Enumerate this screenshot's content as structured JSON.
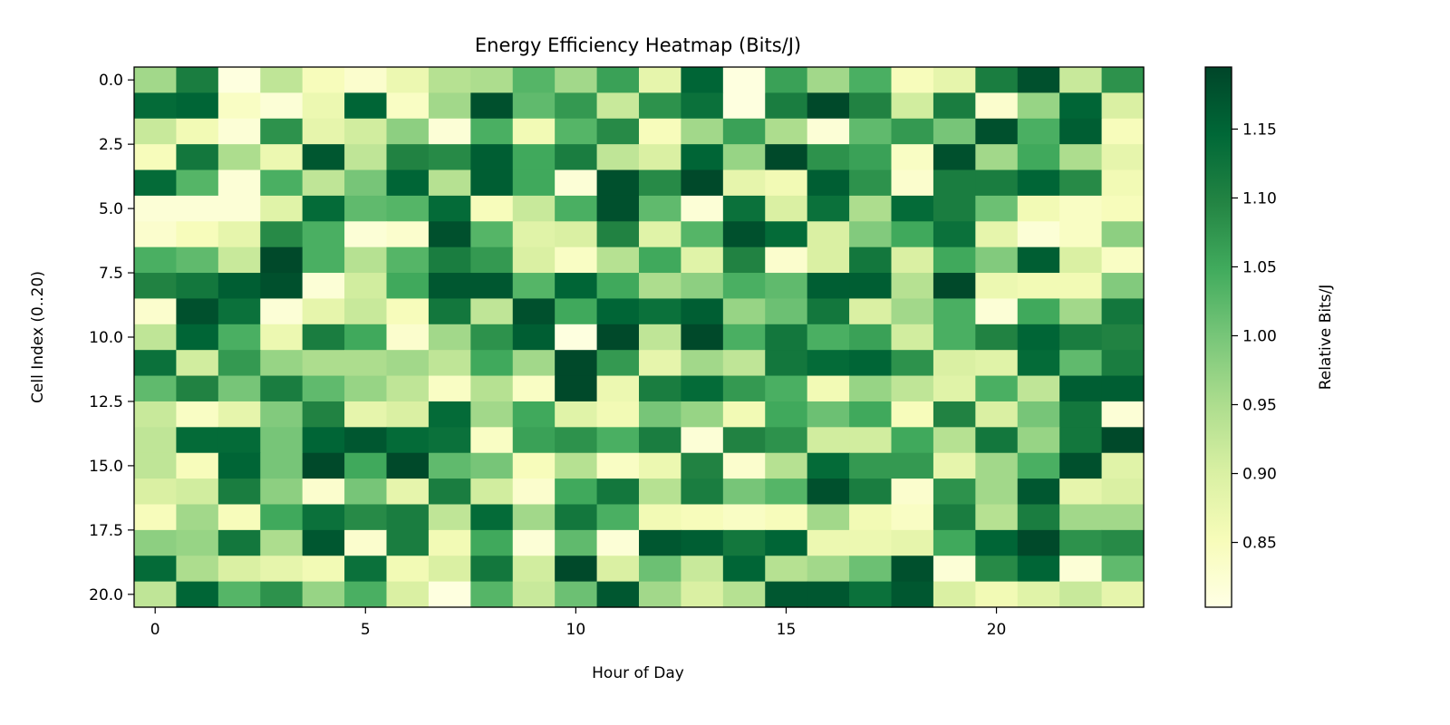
{
  "chart_data": {
    "type": "heatmap",
    "title": "Energy Efficiency Heatmap (Bits/J)",
    "xlabel": "Hour of Day",
    "ylabel": "Cell Index (0..20)",
    "colorbar_label": "Relative Bits/J",
    "colormap": "YlGn",
    "colormap_stops": [
      "#ffffe5",
      "#f7fcb9",
      "#d9f0a3",
      "#addd8e",
      "#78c679",
      "#41ab5d",
      "#238443",
      "#006837",
      "#004529"
    ],
    "x_ticks": [
      "0",
      "5",
      "10",
      "15",
      "20"
    ],
    "x_tick_values": [
      0,
      5,
      10,
      15,
      20
    ],
    "y_ticks": [
      "0.0",
      "2.5",
      "5.0",
      "7.5",
      "10.0",
      "12.5",
      "15.0",
      "17.5",
      "20.0"
    ],
    "y_tick_values": [
      0,
      2.5,
      5,
      7.5,
      10,
      12.5,
      15,
      17.5,
      20
    ],
    "colorbar_ticks": [
      "0.85",
      "0.90",
      "0.95",
      "1.00",
      "1.05",
      "1.10",
      "1.15"
    ],
    "colorbar_tick_values": [
      0.85,
      0.9,
      0.95,
      1.0,
      1.05,
      1.1,
      1.15
    ],
    "vmin": 0.803,
    "vmax": 1.195,
    "x_range": [
      -0.5,
      23.5
    ],
    "y_range": [
      -0.5,
      20.5
    ],
    "grid": false,
    "legend": "colorbar-right",
    "rows": 21,
    "cols": 24,
    "values": [
      [
        0.96,
        1.11,
        0.81,
        0.93,
        0.85,
        0.83,
        0.87,
        0.94,
        0.95,
        1.03,
        0.96,
        1.06,
        0.88,
        1.15,
        0.81,
        1.06,
        0.96,
        1.04,
        0.85,
        0.88,
        1.11,
        1.18,
        0.92,
        1.08
      ],
      [
        1.14,
        1.15,
        0.84,
        0.82,
        0.87,
        1.15,
        0.84,
        0.96,
        1.18,
        1.02,
        1.07,
        0.92,
        1.08,
        1.13,
        0.81,
        1.11,
        1.19,
        1.1,
        0.91,
        1.11,
        0.83,
        0.97,
        1.15,
        0.9
      ],
      [
        0.92,
        0.86,
        0.82,
        1.08,
        0.88,
        0.91,
        0.98,
        0.82,
        1.04,
        0.86,
        1.03,
        1.09,
        0.85,
        0.96,
        1.06,
        0.95,
        0.82,
        1.02,
        1.07,
        1.0,
        1.18,
        1.04,
        1.16,
        0.85
      ],
      [
        0.85,
        1.12,
        0.95,
        0.87,
        1.17,
        0.93,
        1.1,
        1.09,
        1.16,
        1.05,
        1.11,
        0.93,
        0.9,
        1.15,
        0.97,
        1.19,
        1.08,
        1.06,
        0.84,
        1.18,
        0.96,
        1.05,
        0.95,
        0.88
      ],
      [
        1.14,
        1.03,
        0.82,
        1.04,
        0.93,
        1.0,
        1.15,
        0.94,
        1.16,
        1.05,
        0.82,
        1.18,
        1.09,
        1.19,
        0.88,
        0.86,
        1.16,
        1.08,
        0.83,
        1.11,
        1.11,
        1.15,
        1.09,
        0.86
      ],
      [
        0.82,
        0.82,
        0.82,
        0.89,
        1.14,
        1.02,
        1.03,
        1.14,
        0.85,
        0.92,
        1.04,
        1.18,
        1.02,
        0.82,
        1.13,
        0.9,
        1.13,
        0.95,
        1.14,
        1.11,
        1.01,
        0.86,
        0.84,
        0.85
      ],
      [
        0.83,
        0.85,
        0.88,
        1.09,
        1.04,
        0.82,
        0.83,
        1.18,
        1.03,
        0.89,
        0.9,
        1.1,
        0.89,
        1.03,
        1.18,
        1.14,
        0.9,
        0.99,
        1.05,
        1.13,
        0.88,
        0.82,
        0.84,
        0.98
      ],
      [
        1.04,
        1.02,
        0.92,
        1.19,
        1.04,
        0.94,
        1.03,
        1.11,
        1.07,
        0.9,
        0.84,
        0.94,
        1.05,
        0.89,
        1.1,
        0.83,
        0.9,
        1.12,
        0.9,
        1.05,
        0.99,
        1.16,
        0.9,
        0.84
      ],
      [
        1.1,
        1.12,
        1.16,
        1.18,
        0.82,
        0.91,
        1.05,
        1.17,
        1.17,
        1.03,
        1.15,
        1.05,
        0.95,
        0.98,
        1.04,
        1.02,
        1.16,
        1.16,
        0.94,
        1.19,
        0.87,
        0.86,
        0.86,
        0.99
      ],
      [
        0.83,
        1.18,
        1.13,
        0.82,
        0.88,
        0.92,
        0.85,
        1.12,
        0.93,
        1.18,
        1.05,
        1.15,
        1.13,
        1.16,
        0.97,
        1.01,
        1.12,
        0.9,
        0.96,
        1.04,
        0.82,
        1.05,
        0.96,
        1.12
      ],
      [
        0.93,
        1.15,
        1.04,
        0.87,
        1.11,
        1.05,
        0.83,
        0.96,
        1.08,
        1.16,
        0.81,
        1.19,
        0.93,
        1.19,
        1.04,
        1.12,
        1.04,
        1.06,
        0.91,
        1.04,
        1.1,
        1.15,
        1.11,
        1.1
      ],
      [
        1.13,
        0.91,
        1.07,
        0.97,
        0.95,
        0.95,
        0.96,
        0.93,
        1.05,
        0.96,
        1.19,
        1.07,
        0.88,
        0.96,
        0.93,
        1.12,
        1.14,
        1.15,
        1.08,
        0.9,
        0.89,
        1.14,
        1.02,
        1.11
      ],
      [
        1.02,
        1.1,
        1.0,
        1.11,
        1.02,
        0.97,
        0.93,
        0.84,
        0.94,
        0.84,
        1.19,
        0.87,
        1.11,
        1.14,
        1.07,
        1.04,
        0.86,
        0.97,
        0.93,
        0.89,
        1.04,
        0.93,
        1.16,
        1.16
      ],
      [
        0.92,
        0.84,
        0.88,
        0.99,
        1.1,
        0.88,
        0.9,
        1.14,
        0.96,
        1.05,
        0.89,
        0.86,
        1.0,
        0.97,
        0.86,
        1.05,
        1.01,
        1.05,
        0.85,
        1.1,
        0.9,
        1.0,
        1.12,
        0.82
      ],
      [
        0.93,
        1.14,
        1.14,
        1.0,
        1.15,
        1.17,
        1.14,
        1.13,
        0.84,
        1.06,
        1.08,
        1.04,
        1.11,
        0.82,
        1.1,
        1.08,
        0.91,
        0.91,
        1.05,
        0.94,
        1.12,
        0.97,
        1.12,
        1.19
      ],
      [
        0.93,
        0.85,
        1.15,
        1.0,
        1.19,
        1.05,
        1.19,
        1.02,
        1.0,
        0.85,
        0.94,
        0.84,
        0.87,
        1.1,
        0.83,
        0.94,
        1.14,
        1.07,
        1.07,
        0.88,
        0.96,
        1.04,
        1.18,
        0.89
      ],
      [
        0.9,
        0.91,
        1.11,
        0.98,
        0.83,
        1.0,
        0.88,
        1.11,
        0.91,
        0.83,
        1.05,
        1.12,
        0.94,
        1.11,
        1.0,
        1.03,
        1.18,
        1.11,
        0.83,
        1.08,
        0.96,
        1.17,
        0.88,
        0.9
      ],
      [
        0.85,
        0.96,
        0.85,
        1.05,
        1.13,
        1.09,
        1.11,
        0.93,
        1.14,
        0.96,
        1.12,
        1.04,
        0.86,
        0.85,
        0.84,
        0.85,
        0.96,
        0.86,
        0.84,
        1.11,
        0.94,
        1.11,
        0.96,
        0.96
      ],
      [
        0.98,
        0.97,
        1.12,
        0.95,
        1.17,
        0.83,
        1.11,
        0.86,
        1.05,
        0.82,
        1.02,
        0.82,
        1.17,
        1.16,
        1.12,
        1.15,
        0.87,
        0.87,
        0.88,
        1.05,
        1.15,
        1.19,
        1.08,
        1.09
      ],
      [
        1.14,
        0.95,
        0.9,
        0.88,
        0.86,
        1.13,
        0.86,
        0.9,
        1.12,
        0.91,
        1.19,
        0.9,
        1.01,
        0.92,
        1.15,
        0.94,
        0.96,
        1.01,
        1.18,
        0.82,
        1.09,
        1.15,
        0.82,
        1.02
      ],
      [
        0.93,
        1.15,
        1.03,
        1.08,
        0.97,
        1.04,
        0.9,
        0.81,
        1.03,
        0.92,
        1.01,
        1.17,
        0.96,
        0.9,
        0.94,
        1.17,
        1.17,
        1.13,
        1.17,
        0.9,
        0.86,
        0.89,
        0.92,
        0.88
      ]
    ]
  }
}
